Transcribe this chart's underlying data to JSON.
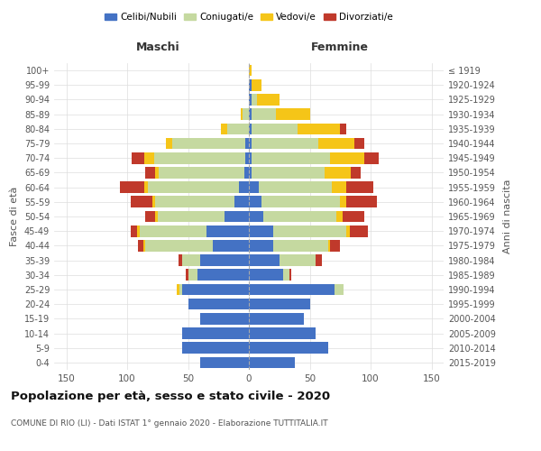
{
  "age_groups": [
    "0-4",
    "5-9",
    "10-14",
    "15-19",
    "20-24",
    "25-29",
    "30-34",
    "35-39",
    "40-44",
    "45-49",
    "50-54",
    "55-59",
    "60-64",
    "65-69",
    "70-74",
    "75-79",
    "80-84",
    "85-89",
    "90-94",
    "95-99",
    "100+"
  ],
  "birth_years": [
    "2015-2019",
    "2010-2014",
    "2005-2009",
    "2000-2004",
    "1995-1999",
    "1990-1994",
    "1985-1989",
    "1980-1984",
    "1975-1979",
    "1970-1974",
    "1965-1969",
    "1960-1964",
    "1955-1959",
    "1950-1954",
    "1945-1949",
    "1940-1944",
    "1935-1939",
    "1930-1934",
    "1925-1929",
    "1920-1924",
    "≤ 1919"
  ],
  "colors": {
    "celibi": "#4472c4",
    "coniugati": "#c5d9a0",
    "vedovi": "#f5c518",
    "divorziati": "#c0392b"
  },
  "males": {
    "celibi": [
      40,
      55,
      55,
      40,
      50,
      55,
      42,
      40,
      30,
      35,
      20,
      12,
      8,
      4,
      3,
      3,
      0,
      0,
      0,
      0,
      0
    ],
    "coniugati": [
      0,
      0,
      0,
      0,
      0,
      2,
      8,
      15,
      55,
      55,
      55,
      65,
      75,
      70,
      75,
      60,
      18,
      5,
      0,
      0,
      0
    ],
    "vedovi": [
      0,
      0,
      0,
      0,
      0,
      2,
      0,
      0,
      2,
      2,
      2,
      2,
      3,
      3,
      8,
      5,
      5,
      2,
      0,
      0,
      0
    ],
    "divorziati": [
      0,
      0,
      0,
      0,
      0,
      0,
      2,
      3,
      4,
      5,
      8,
      18,
      20,
      8,
      10,
      0,
      0,
      0,
      0,
      0,
      0
    ]
  },
  "females": {
    "nubili": [
      38,
      65,
      55,
      45,
      50,
      70,
      28,
      25,
      20,
      20,
      12,
      10,
      8,
      2,
      2,
      2,
      2,
      2,
      2,
      2,
      0
    ],
    "coniugate": [
      0,
      0,
      0,
      0,
      0,
      8,
      5,
      30,
      45,
      60,
      60,
      65,
      60,
      60,
      65,
      55,
      38,
      20,
      5,
      0,
      0
    ],
    "vedove": [
      0,
      0,
      0,
      0,
      0,
      0,
      0,
      0,
      2,
      3,
      5,
      5,
      12,
      22,
      28,
      30,
      35,
      28,
      18,
      8,
      2
    ],
    "divorziate": [
      0,
      0,
      0,
      0,
      0,
      0,
      2,
      5,
      8,
      15,
      18,
      25,
      22,
      8,
      12,
      8,
      5,
      0,
      0,
      0,
      0
    ]
  },
  "xlim": 160,
  "title": "Popolazione per età, sesso e stato civile - 2020",
  "subtitle": "COMUNE DI RIO (LI) - Dati ISTAT 1° gennaio 2020 - Elaborazione TUTTITALIA.IT",
  "xlabel_left": "Maschi",
  "xlabel_right": "Femmine",
  "ylabel_left": "Fasce di età",
  "ylabel_right": "Anni di nascita",
  "legend_labels": [
    "Celibi/Nubili",
    "Coniugati/e",
    "Vedovi/e",
    "Divorziati/e"
  ]
}
